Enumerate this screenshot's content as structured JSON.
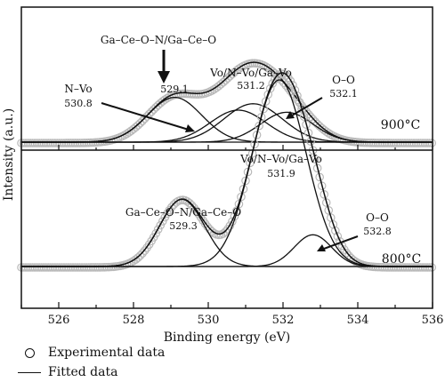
{
  "chart_data": {
    "type": "line",
    "xlabel": "Binding energy (eV)",
    "ylabel": "Intensity (a.u.)",
    "xlim": [
      525,
      536
    ],
    "x_ticks": [
      "526",
      "528",
      "530",
      "532",
      "534",
      "536"
    ],
    "x_reversed": false,
    "y_ticks": [],
    "grid": false,
    "legend_position": "below",
    "legend": [
      {
        "symbol": "circle",
        "label": "Experimental data"
      },
      {
        "symbol": "line",
        "label": "Fitted data"
      }
    ],
    "panels": [
      {
        "label": "900°C",
        "peaks": [
          {
            "center": 529.1,
            "height": 0.42,
            "sigma": 0.72
          },
          {
            "center": 530.8,
            "height": 0.3,
            "sigma": 0.75
          },
          {
            "center": 531.2,
            "height": 0.36,
            "sigma": 0.78
          },
          {
            "center": 532.1,
            "height": 0.28,
            "sigma": 0.7
          }
        ],
        "annotations": [
          {
            "lines": [
              "Ga–Ce–O–N/Ga–Ce–O"
            ],
            "value": "529.1"
          },
          {
            "lines": [
              "N–Vo"
            ],
            "value": "530.8"
          },
          {
            "lines": [
              "Vo/N–Vo/Ga–Vo"
            ],
            "value": "531.2"
          },
          {
            "lines": [
              "O–O"
            ],
            "value": "532.1"
          }
        ]
      },
      {
        "label": "800°C",
        "peaks": [
          {
            "center": 529.3,
            "height": 0.36,
            "sigma": 0.6
          },
          {
            "center": 531.9,
            "height": 1.0,
            "sigma": 0.72
          },
          {
            "center": 532.8,
            "height": 0.17,
            "sigma": 0.5
          }
        ],
        "annotations": [
          {
            "lines": [
              "Ga–Ce–O–N/Ga–Ce–O"
            ],
            "value": "529.3"
          },
          {
            "lines": [
              "Vo/N–Vo/Ga–Vo"
            ],
            "value": "531.9"
          },
          {
            "lines": [
              "O–O"
            ],
            "value": "532.8"
          }
        ]
      }
    ]
  }
}
